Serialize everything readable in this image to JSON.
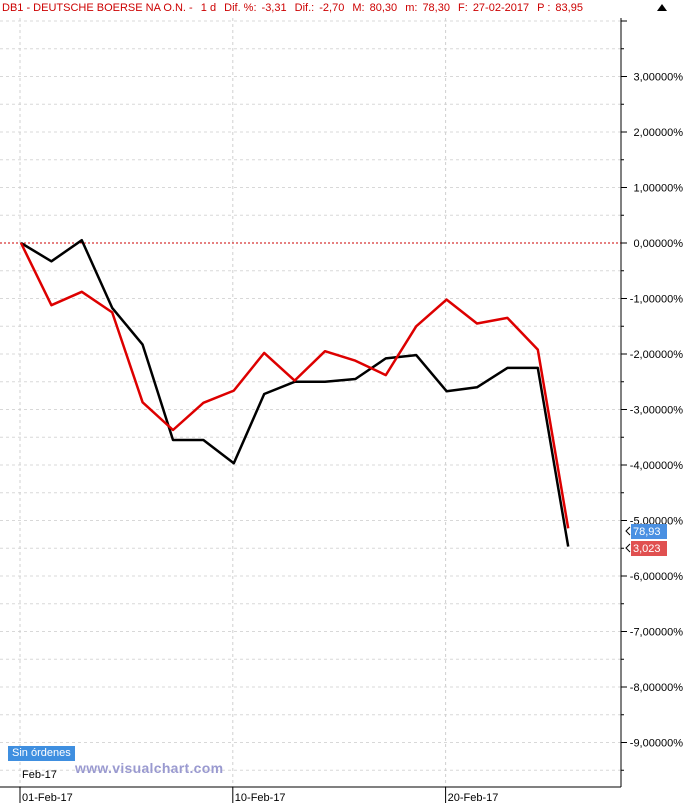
{
  "header": {
    "symbol": "DB1 - DEUTSCHE BOERSE NA O.N. -",
    "period": "1 d",
    "dif_pct_label": "Dif. %:",
    "dif_pct_value": "-3,31",
    "dif_label": "Dif.:",
    "dif_value": "-2,70",
    "max_label": "M:",
    "max_value": "80,30",
    "min_label": "m:",
    "min_value": "78,30",
    "date_label": "F:",
    "date_value": "27-02-2017",
    "price_label": "P :",
    "price_value": "83,95"
  },
  "orders_badge": "Sin órdenes",
  "watermark": "www.visualchart.com",
  "month_label": "Feb-17",
  "chart_data": {
    "type": "line",
    "y_axis": {
      "side": "right",
      "min": -9.5,
      "max": 4,
      "ticks": [
        3,
        2,
        1,
        0,
        -1,
        -2,
        -3,
        -4,
        -5,
        -6,
        -7,
        -8,
        -9
      ],
      "tick_labels": [
        "3,00000%",
        "2,00000%",
        "1,00000%",
        "0,00000%",
        "-1,00000%",
        "-2,00000%",
        "-3,00000%",
        "-4,00000%",
        "-5,00000%",
        "-6,00000%",
        "-7,00000%",
        "-8,00000%",
        "-9,00000%"
      ]
    },
    "x_axis": {
      "labels": [
        "01-Feb-17",
        "10-Feb-17",
        "20-Feb-17"
      ],
      "label_index": [
        0,
        7,
        14
      ]
    },
    "grid": true,
    "zero_line_color": "#cc0000",
    "series": [
      {
        "color": "#000000",
        "values": [
          0,
          -0.33,
          0.05,
          -1.17,
          -1.83,
          -3.55,
          -3.55,
          -3.97,
          -2.72,
          -2.5,
          -2.5,
          -2.45,
          -2.08,
          -2.02,
          -2.67,
          -2.6,
          -2.25,
          -2.25,
          -5.47
        ]
      },
      {
        "color": "#dd0000",
        "values": [
          0,
          -1.12,
          -0.88,
          -1.25,
          -2.87,
          -3.37,
          -2.88,
          -2.66,
          -1.98,
          -2.48,
          -1.95,
          -2.12,
          -2.38,
          -1.5,
          -1.02,
          -1.45,
          -1.35,
          -1.92,
          -5.14
        ]
      }
    ],
    "last_value_badges": [
      {
        "text": "78,93",
        "color": "#4a90e2"
      },
      {
        "text": "3,023",
        "color": "#e05050"
      }
    ]
  }
}
